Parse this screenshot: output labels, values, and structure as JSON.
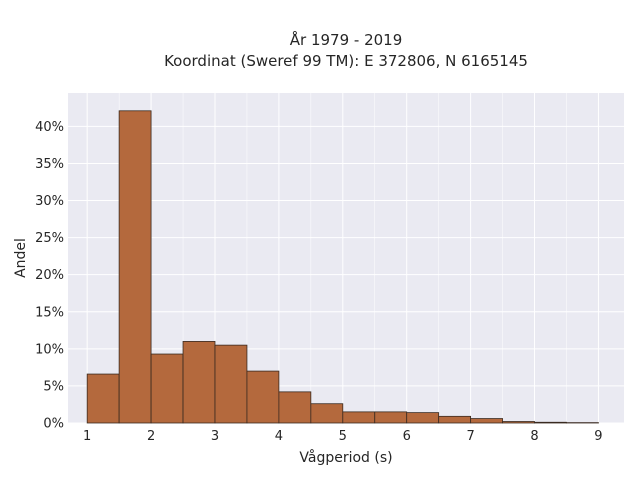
{
  "chart_data": {
    "type": "bar",
    "title": "År 1979 - 2019",
    "subtitle": "Koordinat (Sweref 99 TM): E 372806, N 6165145",
    "xlabel": "Vågperiod (s)",
    "ylabel": "Andel",
    "xlim": [
      0.7,
      9.4
    ],
    "ylim": [
      0,
      44.5
    ],
    "xticks": [
      1,
      2,
      3,
      4,
      5,
      6,
      7,
      8,
      9
    ],
    "xtick_labels": [
      "1",
      "2",
      "3",
      "4",
      "5",
      "6",
      "7",
      "8",
      "9"
    ],
    "yticks": [
      0,
      5,
      10,
      15,
      20,
      25,
      30,
      35,
      40
    ],
    "ytick_labels": [
      "0%",
      "5%",
      "10%",
      "15%",
      "20%",
      "25%",
      "30%",
      "35%",
      "40%"
    ],
    "grid": true,
    "bin_edges": [
      1.0,
      1.5,
      2.0,
      2.5,
      3.0,
      3.5,
      4.0,
      4.5,
      5.0,
      5.5,
      6.0,
      6.5,
      7.0,
      7.5,
      8.0,
      8.5,
      9.0
    ],
    "values": [
      6.6,
      42.1,
      9.3,
      11.0,
      10.5,
      7.0,
      4.2,
      2.6,
      1.5,
      1.5,
      1.4,
      0.9,
      0.6,
      0.2,
      0.1,
      0.05
    ],
    "colors": {
      "bar_fill": "#b4693d",
      "bar_edge": "#3a2a20",
      "plot_bg": "#eaeaf2",
      "grid": "#ffffff"
    }
  }
}
